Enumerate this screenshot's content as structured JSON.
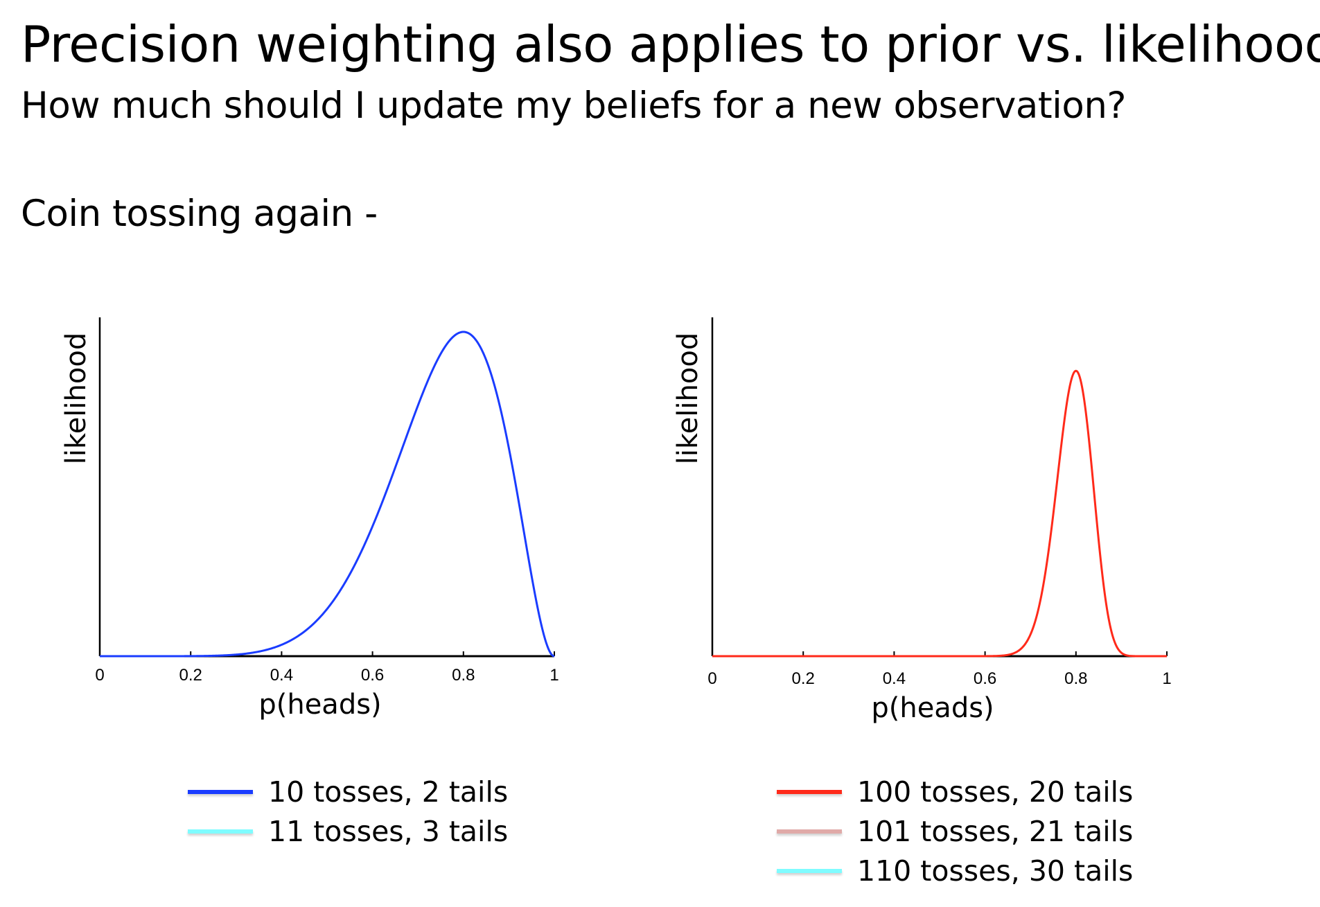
{
  "title": "Precision weighting also applies to prior vs. likelihood",
  "subtitle": "How much should I update my beliefs for a new observation?",
  "section": "Coin tossing again -",
  "chart_data": [
    {
      "type": "line",
      "xlabel": "p(heads)",
      "ylabel": "likelihood",
      "xlim": [
        0,
        1
      ],
      "ylim": [
        0,
        1.05
      ],
      "xticks": [
        "0",
        "0.2",
        "0.4",
        "0.6",
        "0.8",
        "1"
      ],
      "grid": false,
      "legend_position": "bottom",
      "series": [
        {
          "name": "10 tosses, 2 tails",
          "heads": 8,
          "tails": 2,
          "color": "#1a3cff",
          "drawn": true,
          "peak_value": 1.0
        },
        {
          "name": "11 tosses, 3 tails",
          "heads": 8,
          "tails": 3,
          "color": "#7ffcff",
          "drawn": false
        }
      ]
    },
    {
      "type": "line",
      "xlabel": "p(heads)",
      "ylabel": "likelihood",
      "xlim": [
        0,
        1
      ],
      "ylim": [
        0,
        1.05
      ],
      "xticks": [
        "0",
        "0.2",
        "0.4",
        "0.6",
        "0.8",
        "1"
      ],
      "grid": false,
      "legend_position": "bottom",
      "series": [
        {
          "name": "100 tosses, 20 tails",
          "heads": 80,
          "tails": 20,
          "color": "#ff2a1a",
          "drawn": true,
          "peak_value": 0.88
        },
        {
          "name": "101 tosses, 21 tails",
          "heads": 80,
          "tails": 21,
          "color": "#e0aaa8",
          "drawn": false
        },
        {
          "name": "110 tosses, 30 tails",
          "heads": 80,
          "tails": 30,
          "color": "#7ffcff",
          "drawn": false
        }
      ]
    }
  ]
}
